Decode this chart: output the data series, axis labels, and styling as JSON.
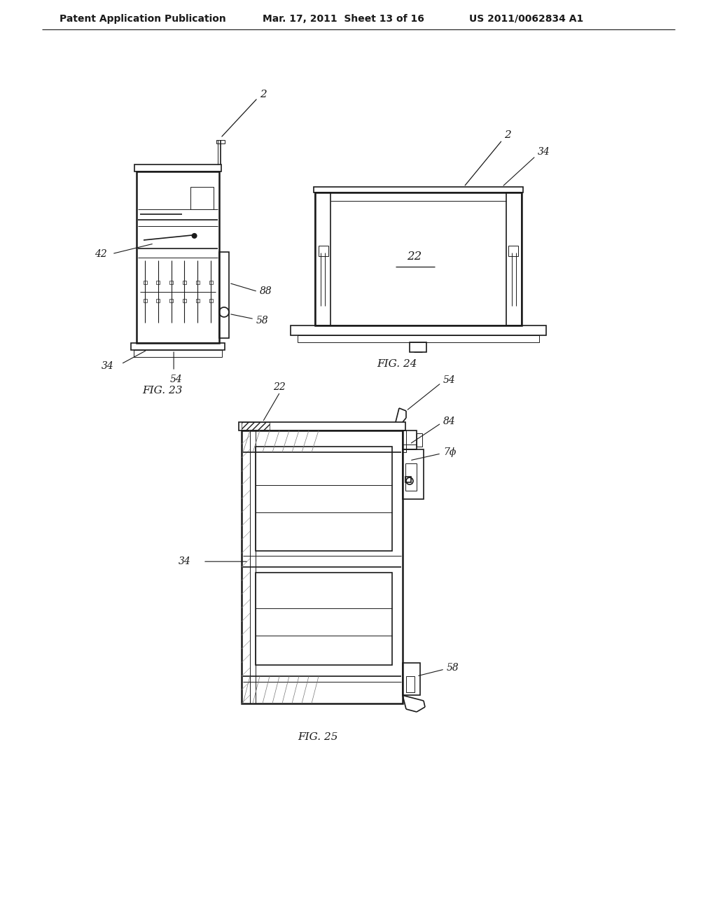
{
  "background_color": "#ffffff",
  "header_text": "Patent Application Publication",
  "header_date": "Mar. 17, 2011  Sheet 13 of 16",
  "header_patent": "US 2011/0062834 A1",
  "fig23_caption": "FIG. 23",
  "fig24_caption": "FIG. 24",
  "fig25_caption": "FIG. 25",
  "text_color": "#1a1a1a",
  "line_color": "#1a1a1a",
  "font_size_header": 10,
  "font_size_caption": 11,
  "font_size_label": 9
}
